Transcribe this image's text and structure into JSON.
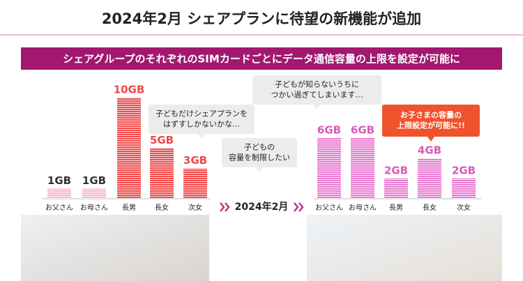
{
  "header": {
    "title": "2024年2月  シェアプランに待望の新機能が追加",
    "banner": "シェアグループのそれぞれのSIMカードごとにデータ通信容量の上限を設定が可能に"
  },
  "transition_label": "2024年2月",
  "chart_data": [
    {
      "type": "bar",
      "categories": [
        "お父さん",
        "お母さん",
        "長男",
        "長女",
        "次女"
      ],
      "values": [
        1,
        1,
        10,
        5,
        3
      ],
      "value_labels": [
        "1GB",
        "1GB",
        "10GB",
        "5GB",
        "3GB"
      ],
      "colors": [
        "#f7b6d8",
        "#f7b6d8",
        "#f04848",
        "#f04848",
        "#f04848"
      ],
      "label_colors": [
        "#333333",
        "#333333",
        "#f04848",
        "#f04848",
        "#f04848"
      ],
      "annotations": [
        {
          "lines": [
            "子どもだけシェアプランを",
            "はずすしかないかな…"
          ],
          "color": "#ececec"
        },
        {
          "lines": [
            "子どもの",
            "容量を制限したい"
          ],
          "color": "#ececec"
        }
      ]
    },
    {
      "type": "bar",
      "categories": [
        "お父さん",
        "お母さん",
        "長男",
        "長女",
        "次女"
      ],
      "values": [
        6,
        6,
        2,
        4,
        2
      ],
      "value_labels": [
        "6GB",
        "6GB",
        "2GB",
        "4GB",
        "2GB"
      ],
      "colors": [
        "#e77ccf",
        "#e77ccf",
        "#e77ccf",
        "#e77ccf",
        "#e77ccf"
      ],
      "label_colors": [
        "#d95ab8",
        "#d95ab8",
        "#d95ab8",
        "#d95ab8",
        "#d95ab8"
      ],
      "annotations": [
        {
          "lines": [
            "子どもが知らないうちに",
            "つかい過ぎてしまいます…"
          ],
          "color": "#ececec"
        },
        {
          "lines": [
            "お子さまの容量の",
            "上限設定が可能に!!"
          ],
          "color": "#f0522c"
        }
      ]
    }
  ]
}
